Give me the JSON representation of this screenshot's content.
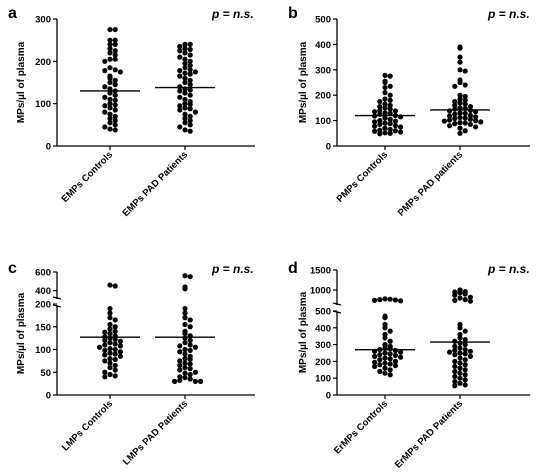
{
  "chart_data": [
    {
      "type": "scatter",
      "panel_label": "a",
      "pvalue": "p = n.s.",
      "ylabel": "MPs/µl of plasma",
      "ylim": [
        0,
        300
      ],
      "yticks": [
        "0",
        "100",
        "200",
        "300"
      ],
      "categories": [
        "EMPs Controls",
        "EMPs PAD Patients"
      ],
      "series": [
        {
          "values": [
            275,
            275,
            250,
            250,
            240,
            240,
            230,
            225,
            220,
            215,
            205,
            205,
            200,
            185,
            180,
            178,
            175,
            165,
            160,
            155,
            150,
            145,
            140,
            135,
            130,
            125,
            120,
            115,
            110,
            108,
            100,
            97,
            95,
            90,
            85,
            80,
            75,
            70,
            65,
            60,
            55,
            50,
            45,
            40,
            38
          ],
          "mean": 130
        },
        {
          "values": [
            240,
            240,
            235,
            230,
            228,
            225,
            220,
            215,
            210,
            205,
            200,
            195,
            190,
            185,
            180,
            178,
            175,
            172,
            170,
            165,
            160,
            155,
            150,
            145,
            140,
            135,
            132,
            130,
            125,
            120,
            115,
            110,
            105,
            100,
            98,
            95,
            90,
            88,
            85,
            80,
            75,
            70,
            65,
            60,
            55,
            50,
            45,
            38,
            35
          ],
          "mean": 138
        }
      ]
    },
    {
      "type": "scatter",
      "panel_label": "b",
      "pvalue": "p = n.s.",
      "ylabel": "MPs/µl of plasma",
      "ylim": [
        0,
        500
      ],
      "yticks": [
        "0",
        "100",
        "200",
        "300",
        "400",
        "500"
      ],
      "categories": [
        "PMPs Controls",
        "PMPs PAD patients"
      ],
      "series": [
        {
          "values": [
            278,
            275,
            255,
            250,
            235,
            230,
            210,
            200,
            185,
            180,
            175,
            165,
            160,
            155,
            150,
            145,
            140,
            138,
            135,
            130,
            128,
            125,
            120,
            118,
            115,
            110,
            105,
            100,
            98,
            95,
            90,
            88,
            85,
            80,
            78,
            75,
            70,
            65,
            62,
            60,
            58,
            55,
            52,
            50,
            48
          ],
          "mean": 120
        },
        {
          "values": [
            390,
            385,
            350,
            330,
            300,
            295,
            260,
            250,
            240,
            235,
            200,
            195,
            185,
            180,
            175,
            170,
            165,
            160,
            155,
            150,
            148,
            145,
            140,
            138,
            135,
            130,
            128,
            125,
            120,
            118,
            115,
            112,
            110,
            108,
            105,
            102,
            100,
            98,
            95,
            92,
            90,
            88,
            85,
            80,
            75,
            70,
            60,
            50
          ],
          "mean": 142
        }
      ]
    },
    {
      "type": "scatter",
      "panel_label": "c",
      "pvalue": "p = n.s.",
      "ylabel": "MPs/µl of plasma",
      "ylim": [
        0,
        600
      ],
      "axis_break": [
        200,
        300
      ],
      "yticks": [
        "0",
        "50",
        "100",
        "150",
        "200",
        "400",
        "600"
      ],
      "categories": [
        "LMPs Controls",
        "LMPs PAD Patients"
      ],
      "series": [
        {
          "values": [
            460,
            450,
            190,
            180,
            170,
            165,
            155,
            150,
            145,
            140,
            138,
            135,
            130,
            128,
            125,
            122,
            120,
            118,
            115,
            112,
            110,
            108,
            105,
            102,
            100,
            98,
            95,
            92,
            90,
            88,
            85,
            80,
            78,
            75,
            70,
            65,
            60,
            55,
            50,
            45,
            42,
            40
          ],
          "mean": 127
        },
        {
          "values": [
            560,
            550,
            440,
            420,
            190,
            180,
            170,
            165,
            155,
            150,
            140,
            135,
            130,
            125,
            120,
            115,
            110,
            108,
            105,
            100,
            98,
            95,
            90,
            85,
            80,
            78,
            75,
            70,
            68,
            65,
            60,
            58,
            55,
            50,
            48,
            45,
            40,
            38,
            35,
            32,
            30,
            30,
            30
          ],
          "mean": 127
        }
      ]
    },
    {
      "type": "scatter",
      "panel_label": "d",
      "pvalue": "p = n.s.",
      "ylabel": "MPs/µl of plasma",
      "ylim": [
        0,
        1500
      ],
      "axis_break": [
        500,
        600
      ],
      "yticks": [
        "0",
        "100",
        "200",
        "300",
        "400",
        "500",
        "1000",
        "1500"
      ],
      "categories": [
        "ErMPs Controls",
        "ErMPs PAD Patients"
      ],
      "series": [
        {
          "values": [
            780,
            770,
            760,
            750,
            740,
            730,
            470,
            460,
            420,
            400,
            380,
            360,
            340,
            320,
            300,
            290,
            280,
            275,
            270,
            265,
            260,
            255,
            250,
            245,
            240,
            235,
            230,
            225,
            220,
            215,
            210,
            200,
            195,
            190,
            185,
            180,
            175,
            170,
            160,
            150,
            140,
            130,
            120
          ],
          "mean": 270
        },
        {
          "values": [
            1000,
            960,
            950,
            930,
            900,
            870,
            820,
            800,
            760,
            740,
            720,
            420,
            400,
            380,
            360,
            340,
            330,
            320,
            310,
            300,
            290,
            280,
            270,
            265,
            260,
            255,
            250,
            245,
            240,
            230,
            220,
            210,
            200,
            190,
            180,
            170,
            160,
            150,
            140,
            130,
            120,
            110,
            100,
            90,
            80,
            70,
            60,
            55
          ],
          "mean": 315
        }
      ]
    }
  ]
}
